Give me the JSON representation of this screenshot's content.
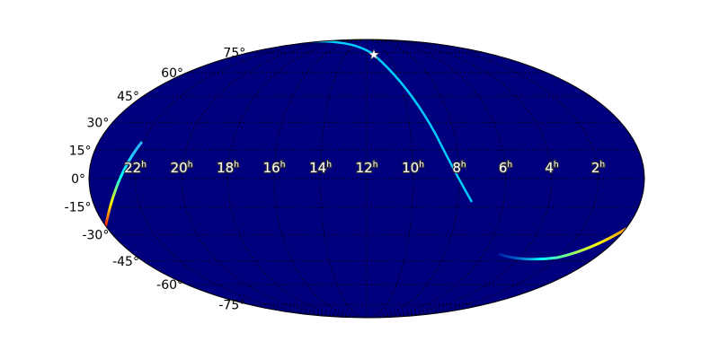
{
  "chart_data": {
    "type": "heatmap",
    "projection": "mollweide",
    "colormap": "jet",
    "background_color": "#00007f",
    "grid": true,
    "ra_tick_labels": [
      "22h",
      "20h",
      "18h",
      "16h",
      "14h",
      "12h",
      "10h",
      "8h",
      "6h",
      "4h",
      "2h"
    ],
    "ra_tick_values_hours": [
      22,
      20,
      18,
      16,
      14,
      12,
      10,
      8,
      6,
      4,
      2
    ],
    "dec_tick_labels": [
      "75°",
      "60°",
      "45°",
      "30°",
      "15°",
      "0°",
      "-15°",
      "-30°",
      "-45°",
      "-60°",
      "-75°"
    ],
    "dec_tick_values_deg": [
      75,
      60,
      45,
      30,
      15,
      0,
      -15,
      -30,
      -45,
      -60,
      -75
    ],
    "marker": {
      "symbol": "star",
      "color": "#ffffff"
    }
  }
}
